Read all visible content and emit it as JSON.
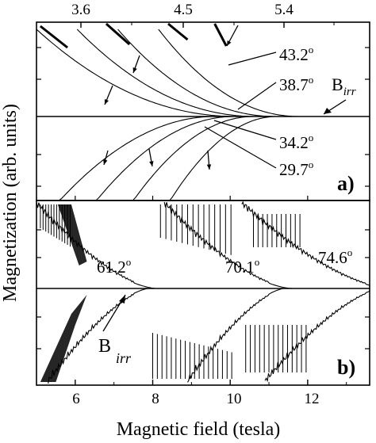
{
  "chart_data": [
    {
      "panel": "a)",
      "type": "line",
      "xlabel": "Magnetic field (tesla)",
      "ylabel": "Magnetization (arb. units)",
      "x_top_ticks": [
        "3.6",
        "4.5",
        "5.4"
      ],
      "x_top_values": [
        3.6,
        4.5,
        5.4
      ],
      "xlim": [
        5.0,
        13.6
      ],
      "series": [
        {
          "name": "43.2°",
          "angle": 43.2,
          "irreversibility_field": 10.0,
          "closing_field": 11.8
        },
        {
          "name": "38.7°",
          "angle": 38.7,
          "irreversibility_field": 8.9,
          "closing_field": 11.2
        },
        {
          "name": "34.2°",
          "angle": 34.2,
          "irreversibility_field": 7.6,
          "closing_field": 10.7
        },
        {
          "name": "29.7°",
          "angle": 29.7,
          "irreversibility_field": 6.6,
          "closing_field": 10.2
        }
      ],
      "annotations": [
        {
          "label_main": "B",
          "label_sub": "irr"
        }
      ],
      "labels": {
        "a43": {
          "deg": "43.2",
          "sup": "o"
        },
        "a38": {
          "deg": "38.7",
          "sup": "o"
        },
        "a34": {
          "deg": "34.2",
          "sup": "o"
        },
        "a29": {
          "deg": "29.7",
          "sup": "o"
        }
      }
    },
    {
      "panel": "b)",
      "type": "line",
      "xlabel": "Magnetic field (tesla)",
      "ylabel": "Magnetization (arb. units)",
      "x_ticks": [
        "6",
        "8",
        "10",
        "12"
      ],
      "x_values": [
        6,
        8,
        10,
        12
      ],
      "xlim": [
        5.0,
        13.6
      ],
      "series": [
        {
          "name": "61.2°",
          "angle": 61.2,
          "irreversibility_field": 7.2
        },
        {
          "name": "70.1°",
          "angle": 70.1,
          "irreversibility_field": 10.2
        },
        {
          "name": "74.6°",
          "angle": 74.6,
          "irreversibility_field": 12.7
        }
      ],
      "annotations": [
        {
          "label_main": "B",
          "label_sub": "irr"
        }
      ],
      "labels": {
        "b61": {
          "deg": "61.2",
          "sup": "o"
        },
        "b70": {
          "deg": "70.1",
          "sup": "o"
        },
        "b74": {
          "deg": "74.6",
          "sup": "o"
        }
      }
    }
  ]
}
